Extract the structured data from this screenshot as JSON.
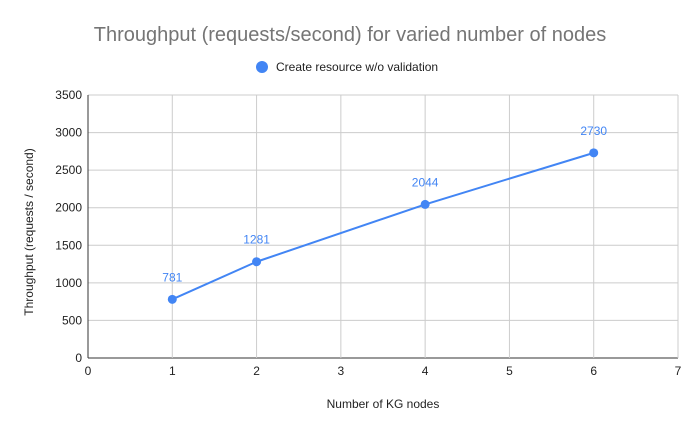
{
  "chart_data": {
    "type": "line",
    "title": "Throughput (requests/second) for varied number of nodes",
    "xlabel": "Number of KG nodes",
    "ylabel": "Throughput (requests / second)",
    "xlim": [
      0,
      7
    ],
    "ylim": [
      0,
      3500
    ],
    "x_ticks": [
      0,
      1,
      2,
      3,
      4,
      5,
      6,
      7
    ],
    "y_ticks": [
      0,
      500,
      1000,
      1500,
      2000,
      2500,
      3000,
      3500
    ],
    "grid": true,
    "legend_position": "top",
    "series": [
      {
        "name": "Create resource w/o validation",
        "color": "#4285f4",
        "x": [
          1,
          2,
          4,
          6
        ],
        "y": [
          781,
          1281,
          2044,
          2730
        ],
        "data_labels": [
          "781",
          "1281",
          "2044",
          "2730"
        ]
      }
    ]
  }
}
